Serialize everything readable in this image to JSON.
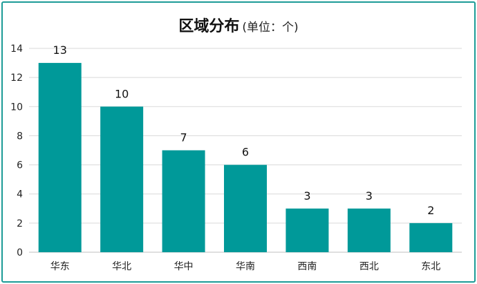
{
  "chart_data": {
    "type": "bar",
    "title": "区域分布",
    "subtitle": "(单位：个)",
    "categories": [
      "华东",
      "华北",
      "华中",
      "华南",
      "西南",
      "西北",
      "东北"
    ],
    "values": [
      13,
      10,
      7,
      6,
      3,
      3,
      2
    ],
    "ylim": [
      0,
      14
    ],
    "yticks": [
      0,
      2,
      4,
      6,
      8,
      10,
      12,
      14
    ],
    "grid": true,
    "legend": "none",
    "bar_color": "#009999",
    "data_labels": true
  }
}
